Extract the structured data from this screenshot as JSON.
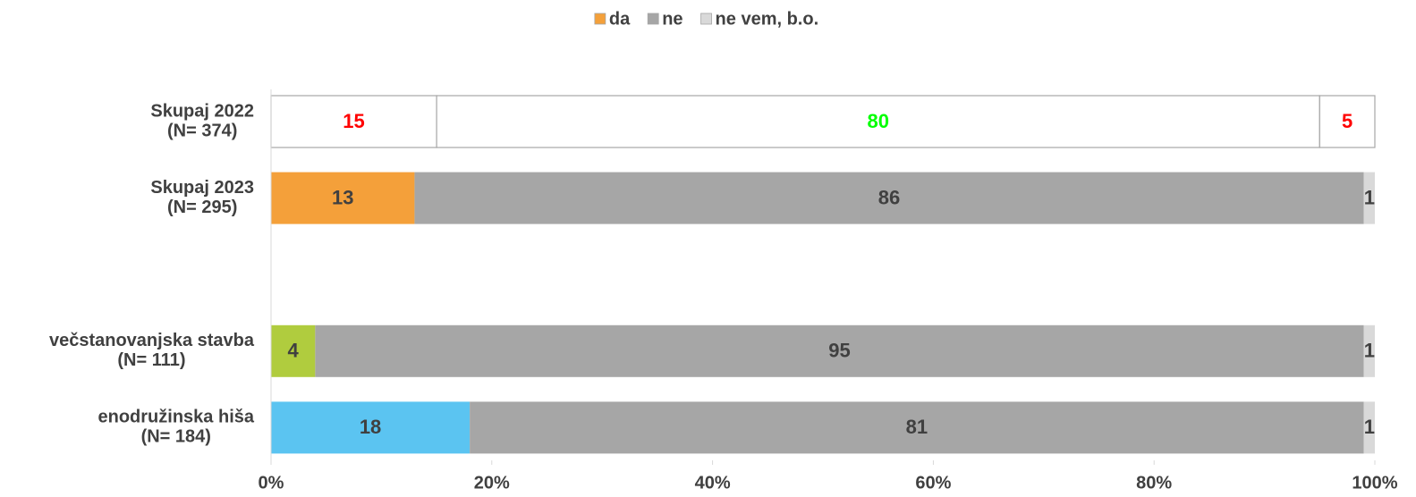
{
  "chart_data": {
    "type": "stacked-bar-horizontal",
    "categories": [
      [
        "Skupaj 2022",
        "(N= 374)"
      ],
      [
        "Skupaj 2023",
        "(N= 295)"
      ],
      null,
      [
        "večstanovanjska stavba",
        "(N= 111)"
      ],
      [
        "enodružinska hiša",
        "(N= 184)"
      ]
    ],
    "series": [
      {
        "name": "da",
        "color": "#f4a03a",
        "values": [
          15,
          13,
          null,
          4,
          18
        ],
        "point_colors": [
          "#ffffff",
          "#f4a03a",
          null,
          "#b0cc3e",
          "#5bc4f1"
        ],
        "label_colors": [
          "#ff0000",
          "#404040",
          null,
          "#404040",
          "#404040"
        ]
      },
      {
        "name": "ne",
        "color": "#a6a6a6",
        "values": [
          80,
          86,
          null,
          95,
          81
        ],
        "point_colors": [
          "#ffffff",
          "#a6a6a6",
          null,
          "#a6a6a6",
          "#a6a6a6"
        ],
        "label_colors": [
          "#00ff00",
          "#404040",
          null,
          "#404040",
          "#404040"
        ]
      },
      {
        "name": "ne vem, b.o.",
        "color": "#d9d9d9",
        "values": [
          5,
          1,
          null,
          1,
          1
        ],
        "point_colors": [
          "#ffffff",
          "#d9d9d9",
          null,
          "#d9d9d9",
          "#d9d9d9"
        ],
        "label_colors": [
          "#ff0000",
          "#404040",
          null,
          "#404040",
          "#404040"
        ]
      }
    ],
    "xlim": [
      0,
      100
    ],
    "xticks": [
      {
        "value": 0,
        "label": "0%"
      },
      {
        "value": 20,
        "label": "20%"
      },
      {
        "value": 40,
        "label": "40%"
      },
      {
        "value": 60,
        "label": "60%"
      },
      {
        "value": 80,
        "label": "80%"
      },
      {
        "value": 100,
        "label": "100%"
      }
    ],
    "legend": "top"
  }
}
